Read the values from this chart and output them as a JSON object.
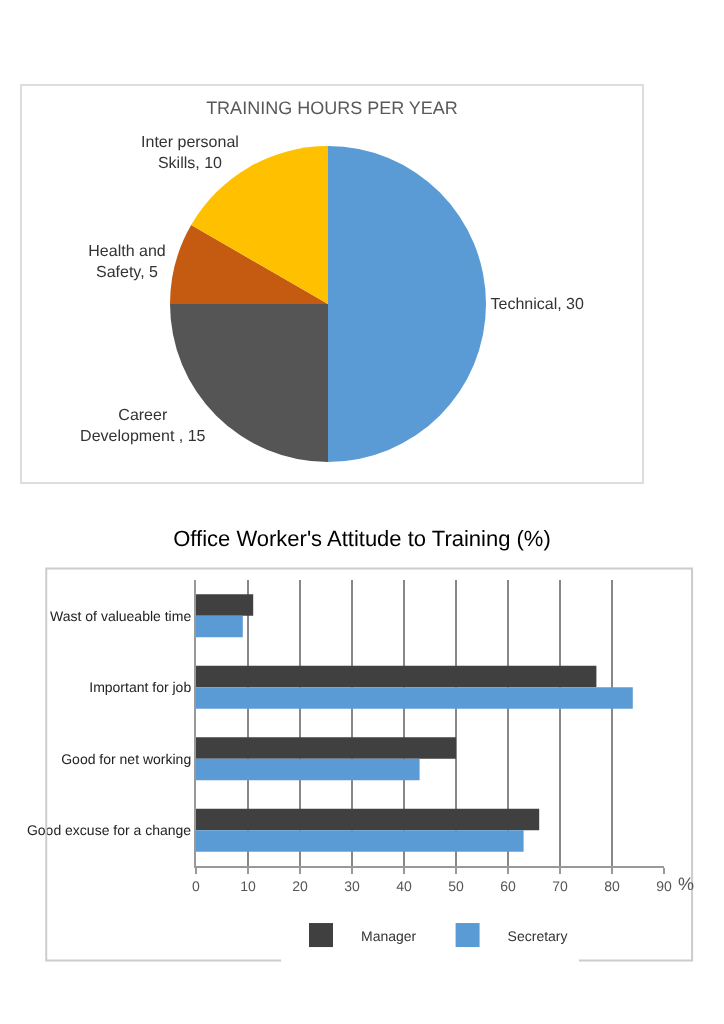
{
  "chart_data": [
    {
      "type": "pie",
      "title": "TRAINING HOURS PER YEAR",
      "categories": [
        "Technical, 30",
        "Career Development , 15",
        "Health and Safety, 5",
        "Inter personal Skills, 10"
      ],
      "values": [
        30,
        15,
        5,
        10
      ],
      "colors": [
        "#5b9bd5",
        "#555555",
        "#c55a11",
        "#ffc000"
      ],
      "legend": false
    },
    {
      "type": "bar",
      "orientation": "horizontal",
      "title": "Office Worker's Attitude to Training (%)",
      "xlabel": "%",
      "categories": [
        "Wast of valueable time",
        "Important for job",
        "Good for net working",
        "Good excuse for a change"
      ],
      "series": [
        {
          "name": "Manager",
          "color": "#404040",
          "values": [
            11,
            77,
            50,
            66
          ]
        },
        {
          "name": "Secretary",
          "color": "#5b9bd5",
          "values": [
            9,
            84,
            43,
            63
          ]
        }
      ],
      "xlim": [
        0,
        90
      ],
      "xticks": [
        0,
        10,
        20,
        30,
        40,
        50,
        60,
        70,
        80,
        90
      ],
      "grid": "x",
      "legend": "bottom"
    }
  ]
}
